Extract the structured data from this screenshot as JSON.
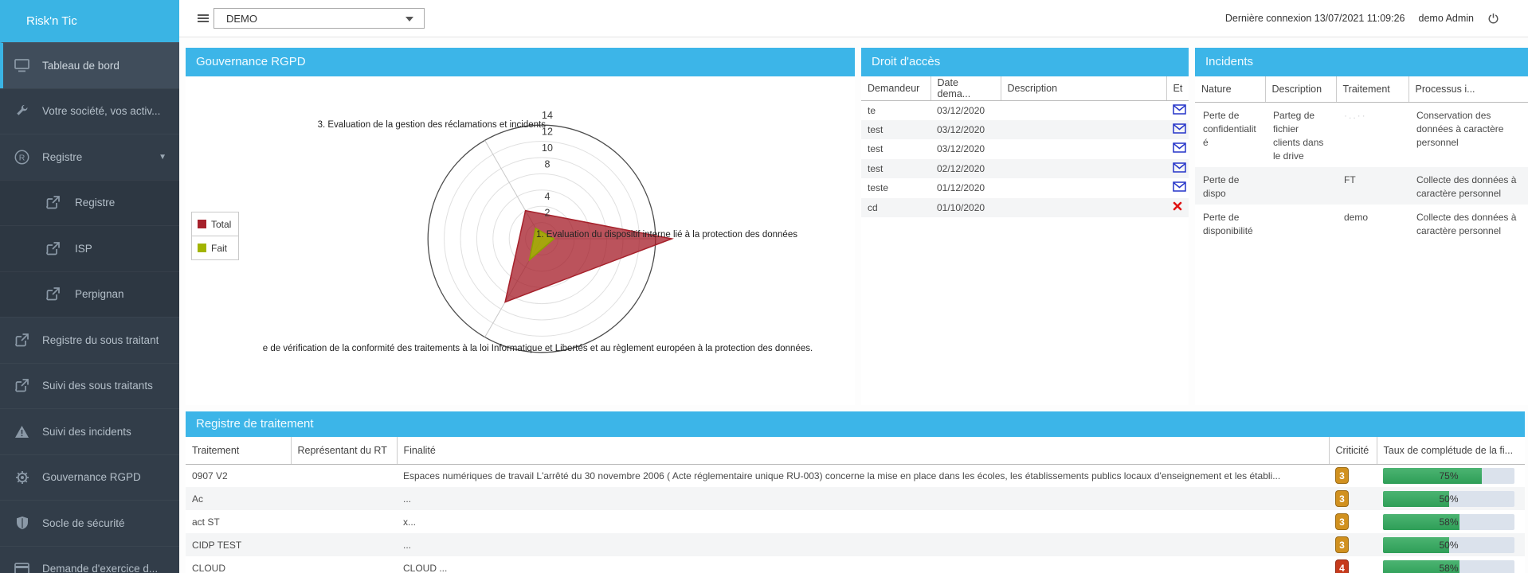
{
  "app": {
    "brand": "Risk'n Tic",
    "entity_selector_value": "DEMO",
    "last_connection": "Dernière connexion 13/07/2021 11:09:26",
    "user": "demo Admin"
  },
  "colors": {
    "accent_teal": "#3cb5e8",
    "sidebar_bg": "#323d49",
    "badge_orange": "#d1911f",
    "badge_red": "#c63a1c",
    "progress_green": "#2e9e57",
    "total_red": "#a6212b",
    "fait_green": "#a2b400"
  },
  "sidebar": {
    "items": [
      {
        "label": "Tableau de bord",
        "icon": "monitor-icon",
        "level": 1,
        "active": true
      },
      {
        "label": "Votre société, vos activ...",
        "icon": "wrench-icon",
        "level": 1
      },
      {
        "label": "Registre",
        "icon": "registered-icon",
        "level": 1,
        "chevron": true
      },
      {
        "label": "Registre",
        "icon": "external-link-icon",
        "level": 2
      },
      {
        "label": "ISP",
        "icon": "external-link-icon",
        "level": 2
      },
      {
        "label": "Perpignan",
        "icon": "external-link-icon",
        "level": 2
      },
      {
        "label": "Registre du sous traitant",
        "icon": "external-link-icon",
        "level": 1
      },
      {
        "label": "Suivi des sous traitants",
        "icon": "external-link-icon",
        "level": 1
      },
      {
        "label": "Suivi des incidents",
        "icon": "warning-icon",
        "level": 1
      },
      {
        "label": "Gouvernance RGPD",
        "icon": "gear-icon",
        "level": 1
      },
      {
        "label": "Socle de sécurité",
        "icon": "shield-icon",
        "level": 1
      },
      {
        "label": "Demande d'exercice d...",
        "icon": "card-icon",
        "level": 1
      }
    ]
  },
  "chart_data": {
    "type": "radar",
    "title": "Gouvernance RGPD",
    "axes": [
      "1. Evaluation du dispositif interne lié à la protection des données",
      "e de vérification de la conformité des traitements à la loi Informatique et Libertés et au règlement européen à la protection des données.",
      "3. Evaluation de la gestion des réclamations et incidents"
    ],
    "ticks": [
      2,
      4,
      8,
      10,
      12,
      14
    ],
    "max_ring": 14,
    "series": [
      {
        "name": "Total",
        "color": "#a6212b",
        "fill": "rgba(164,26,37,0.75)",
        "values": [
          16,
          9,
          4
        ]
      },
      {
        "name": "Fait",
        "color": "#8da000",
        "fill": "rgba(162,180,0,0.85)",
        "values": [
          1.5,
          3,
          1.5
        ]
      }
    ],
    "legend_position": "middle-left",
    "grid": "circular"
  },
  "panels": {
    "gouvernance": {
      "title": "Gouvernance RGPD"
    },
    "droit_acces": {
      "title": "Droit d'accès",
      "columns": [
        "Demandeur",
        "Date dema...",
        "Description",
        "Et"
      ],
      "rows": [
        {
          "demandeur": "te",
          "date": "03/12/2020",
          "description": "",
          "status_icon": "envelope-icon"
        },
        {
          "demandeur": "test",
          "date": "03/12/2020",
          "description": "",
          "status_icon": "envelope-icon"
        },
        {
          "demandeur": "test",
          "date": "03/12/2020",
          "description": "",
          "status_icon": "envelope-icon"
        },
        {
          "demandeur": "test",
          "date": "02/12/2020",
          "description": "",
          "status_icon": "envelope-icon"
        },
        {
          "demandeur": "teste",
          "date": "01/12/2020",
          "description": "",
          "status_icon": "envelope-icon"
        },
        {
          "demandeur": "cd",
          "date": "01/10/2020",
          "description": "",
          "status_icon": "x-icon"
        }
      ]
    },
    "incidents": {
      "title": "Incidents",
      "columns": [
        "Nature",
        "Description",
        "Traitement",
        "Processus i..."
      ],
      "rows": [
        {
          "nature": "Perte de confidentialité",
          "description": "Parteg de fichier clients dans le drive",
          "traitement": "·..··",
          "traitement_faint": true,
          "processus": "Conservation des données à caractère personnel"
        },
        {
          "nature": "Perte de dispo",
          "description": "",
          "traitement": "FT",
          "processus": "Collecte des données à caractère personnel"
        },
        {
          "nature": "Perte de disponibilité",
          "description": "",
          "traitement": "demo",
          "processus": "Collecte des données à caractère personnel"
        }
      ]
    },
    "registre": {
      "title": "Registre de traitement",
      "columns": [
        "Traitement",
        "Représentant du RT",
        "Finalité",
        "Criticité",
        "Taux de complétude de la fi..."
      ],
      "rows": [
        {
          "traitement": "0907 V2",
          "representant": "",
          "finalite": "Espaces numériques de travail L'arrêté du 30 novembre 2006 ( Acte réglementaire unique RU-003) concerne la mise en place dans les écoles, les établissements publics locaux d'enseignement et les établi...",
          "criticite": "3",
          "criticite_color": "#d1911f",
          "taux": 75,
          "taux_label": "75%"
        },
        {
          "traitement": "Ac",
          "representant": "",
          "finalite": "...",
          "criticite": "3",
          "criticite_color": "#d1911f",
          "taux": 50,
          "taux_label": "50%"
        },
        {
          "traitement": "act ST",
          "representant": "",
          "finalite": "x...",
          "criticite": "3",
          "criticite_color": "#d1911f",
          "taux": 58,
          "taux_label": "58%"
        },
        {
          "traitement": "CIDP TEST",
          "representant": "",
          "finalite": "...",
          "criticite": "3",
          "criticite_color": "#d1911f",
          "taux": 50,
          "taux_label": "50%"
        },
        {
          "traitement": "CLOUD",
          "representant": "",
          "finalite": "CLOUD ...",
          "criticite": "4",
          "criticite_color": "#c63a1c",
          "taux": 58,
          "taux_label": "58%"
        }
      ]
    }
  }
}
